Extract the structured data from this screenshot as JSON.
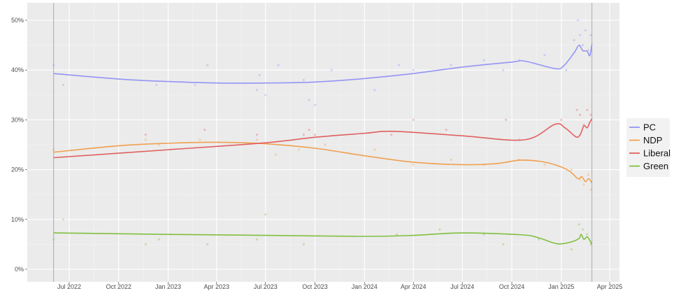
{
  "chart_data": {
    "type": "line",
    "title": "",
    "xlabel": "",
    "ylabel": "",
    "xlim": [
      "2022-05-01",
      "2025-04-20"
    ],
    "ylim": [
      -2,
      53
    ],
    "grid": true,
    "legend_position": "right",
    "x_ticks": [
      {
        "date": "2022-07-01",
        "label": "Jul 2022"
      },
      {
        "date": "2022-10-01",
        "label": "Oct 2022"
      },
      {
        "date": "2023-01-01",
        "label": "Jan 2023"
      },
      {
        "date": "2023-04-01",
        "label": "Apr 2023"
      },
      {
        "date": "2023-07-01",
        "label": "Jul 2023"
      },
      {
        "date": "2023-10-01",
        "label": "Oct 2023"
      },
      {
        "date": "2024-01-01",
        "label": "Jan 2024"
      },
      {
        "date": "2024-04-01",
        "label": "Apr 2024"
      },
      {
        "date": "2024-07-01",
        "label": "Jul 2024"
      },
      {
        "date": "2024-10-01",
        "label": "Oct 2024"
      },
      {
        "date": "2025-01-01",
        "label": "Jan 2025"
      },
      {
        "date": "2025-04-01",
        "label": "Apr 2025"
      }
    ],
    "y_ticks": [
      {
        "value": 0,
        "label": "0%"
      },
      {
        "value": 10,
        "label": "10%"
      },
      {
        "value": 20,
        "label": "20%"
      },
      {
        "value": 30,
        "label": "30%"
      },
      {
        "value": 40,
        "label": "40%"
      },
      {
        "value": 50,
        "label": "50%"
      }
    ],
    "vlines": [
      "2022-06-02",
      "2025-02-27"
    ],
    "series": [
      {
        "name": "PC",
        "color": "#9494f5",
        "trend": [
          [
            "2022-06-02",
            39.3
          ],
          [
            "2022-10-01",
            38.2
          ],
          [
            "2023-01-01",
            37.7
          ],
          [
            "2023-04-01",
            37.4
          ],
          [
            "2023-07-01",
            37.4
          ],
          [
            "2023-10-01",
            37.6
          ],
          [
            "2024-01-01",
            38.3
          ],
          [
            "2024-04-01",
            39.3
          ],
          [
            "2024-07-01",
            40.6
          ],
          [
            "2024-10-01",
            41.6
          ],
          [
            "2024-10-25",
            41.8
          ],
          [
            "2024-12-20",
            40.3
          ],
          [
            "2025-01-05",
            40.8
          ],
          [
            "2025-01-25",
            43.5
          ],
          [
            "2025-02-03",
            45.0
          ],
          [
            "2025-02-10",
            43.9
          ],
          [
            "2025-02-18",
            43.8
          ],
          [
            "2025-02-23",
            42.9
          ],
          [
            "2025-02-27",
            45.2
          ]
        ],
        "polls": [
          [
            "2022-06-02",
            41
          ],
          [
            "2022-06-20",
            37
          ],
          [
            "2022-12-10",
            37
          ],
          [
            "2023-02-20",
            37
          ],
          [
            "2023-03-15",
            41
          ],
          [
            "2023-06-15",
            36
          ],
          [
            "2023-06-20",
            39
          ],
          [
            "2023-07-01",
            35
          ],
          [
            "2023-07-25",
            41
          ],
          [
            "2023-09-10",
            38
          ],
          [
            "2023-09-20",
            34
          ],
          [
            "2023-10-01",
            33
          ],
          [
            "2023-11-01",
            40
          ],
          [
            "2024-01-20",
            36
          ],
          [
            "2024-03-05",
            41
          ],
          [
            "2024-04-01",
            40
          ],
          [
            "2024-06-10",
            41
          ],
          [
            "2024-08-10",
            42
          ],
          [
            "2024-09-15",
            40
          ],
          [
            "2024-10-15",
            42
          ],
          [
            "2024-12-01",
            43
          ],
          [
            "2025-01-10",
            40
          ],
          [
            "2025-01-25",
            46
          ],
          [
            "2025-02-01",
            50
          ],
          [
            "2025-02-05",
            47
          ],
          [
            "2025-02-10",
            45
          ],
          [
            "2025-02-15",
            48
          ],
          [
            "2025-02-20",
            44
          ],
          [
            "2025-02-25",
            47
          ]
        ]
      },
      {
        "name": "NDP",
        "color": "#f0a050",
        "trend": [
          [
            "2022-06-02",
            23.5
          ],
          [
            "2022-10-01",
            24.8
          ],
          [
            "2023-01-01",
            25.3
          ],
          [
            "2023-04-01",
            25.5
          ],
          [
            "2023-07-01",
            25.2
          ],
          [
            "2023-10-01",
            24.3
          ],
          [
            "2024-01-01",
            22.8
          ],
          [
            "2024-04-01",
            21.5
          ],
          [
            "2024-07-01",
            21.0
          ],
          [
            "2024-09-01",
            21.2
          ],
          [
            "2024-10-15",
            21.9
          ],
          [
            "2024-11-20",
            21.7
          ],
          [
            "2024-12-20",
            21.0
          ],
          [
            "2025-01-15",
            19.8
          ],
          [
            "2025-02-01",
            18.2
          ],
          [
            "2025-02-08",
            18.6
          ],
          [
            "2025-02-15",
            17.6
          ],
          [
            "2025-02-21",
            18.2
          ],
          [
            "2025-02-27",
            17.3
          ]
        ],
        "polls": [
          [
            "2022-06-02",
            24
          ],
          [
            "2022-11-20",
            26
          ],
          [
            "2022-12-15",
            25
          ],
          [
            "2023-03-01",
            26
          ],
          [
            "2023-06-15",
            26
          ],
          [
            "2023-07-20",
            23
          ],
          [
            "2023-09-01",
            24
          ],
          [
            "2023-10-20",
            25
          ],
          [
            "2024-01-20",
            24
          ],
          [
            "2024-04-01",
            21
          ],
          [
            "2024-06-10",
            22
          ],
          [
            "2024-08-10",
            21
          ],
          [
            "2024-10-15",
            22
          ],
          [
            "2024-12-01",
            21
          ],
          [
            "2025-01-20",
            20
          ],
          [
            "2025-02-05",
            18
          ],
          [
            "2025-02-12",
            17
          ],
          [
            "2025-02-20",
            19
          ],
          [
            "2025-02-25",
            16
          ]
        ]
      },
      {
        "name": "Liberal",
        "color": "#e06060",
        "trend": [
          [
            "2022-06-02",
            22.4
          ],
          [
            "2023-01-01",
            24.0
          ],
          [
            "2023-07-01",
            25.4
          ],
          [
            "2023-10-01",
            26.5
          ],
          [
            "2024-01-01",
            27.3
          ],
          [
            "2024-02-25",
            27.7
          ],
          [
            "2024-07-01",
            26.8
          ],
          [
            "2024-10-25",
            26.0
          ],
          [
            "2024-12-20",
            29.1
          ],
          [
            "2025-01-08",
            28.4
          ],
          [
            "2025-01-28",
            26.6
          ],
          [
            "2025-02-05",
            27.0
          ],
          [
            "2025-02-12",
            28.8
          ],
          [
            "2025-02-18",
            28.4
          ],
          [
            "2025-02-23",
            29.5
          ],
          [
            "2025-02-27",
            30.2
          ]
        ],
        "polls": [
          [
            "2022-11-20",
            27
          ],
          [
            "2023-03-10",
            28
          ],
          [
            "2023-06-15",
            27
          ],
          [
            "2023-09-10",
            27
          ],
          [
            "2023-09-20",
            28
          ],
          [
            "2023-10-01",
            27
          ],
          [
            "2024-02-20",
            27
          ],
          [
            "2024-04-01",
            30
          ],
          [
            "2024-06-01",
            28
          ],
          [
            "2024-09-20",
            30
          ],
          [
            "2024-10-15",
            26
          ],
          [
            "2025-01-01",
            30
          ],
          [
            "2025-01-30",
            32
          ],
          [
            "2025-02-05",
            31
          ],
          [
            "2025-02-12",
            29
          ],
          [
            "2025-02-18",
            32
          ],
          [
            "2025-02-25",
            31
          ]
        ]
      },
      {
        "name": "Green",
        "color": "#80bf40",
        "trend": [
          [
            "2022-06-02",
            7.3
          ],
          [
            "2023-01-01",
            7.0
          ],
          [
            "2023-07-01",
            6.8
          ],
          [
            "2024-01-01",
            6.6
          ],
          [
            "2024-04-01",
            6.8
          ],
          [
            "2024-07-01",
            7.3
          ],
          [
            "2024-10-20",
            6.9
          ],
          [
            "2024-11-20",
            6.3
          ],
          [
            "2024-12-25",
            5.1
          ],
          [
            "2025-01-20",
            5.5
          ],
          [
            "2025-02-03",
            6.2
          ],
          [
            "2025-02-07",
            7.0
          ],
          [
            "2025-02-12",
            6.0
          ],
          [
            "2025-02-18",
            6.5
          ],
          [
            "2025-02-23",
            5.8
          ],
          [
            "2025-02-27",
            5.0
          ]
        ],
        "polls": [
          [
            "2022-06-02",
            6
          ],
          [
            "2022-06-20",
            10
          ],
          [
            "2022-11-20",
            5
          ],
          [
            "2022-12-15",
            6
          ],
          [
            "2023-03-15",
            5
          ],
          [
            "2023-06-15",
            6
          ],
          [
            "2023-07-01",
            11
          ],
          [
            "2023-09-10",
            5
          ],
          [
            "2024-03-01",
            7
          ],
          [
            "2024-05-20",
            8
          ],
          [
            "2024-08-10",
            7
          ],
          [
            "2024-09-15",
            5
          ],
          [
            "2024-11-20",
            6
          ],
          [
            "2025-01-20",
            4
          ],
          [
            "2025-02-03",
            9
          ],
          [
            "2025-02-10",
            8
          ],
          [
            "2025-02-18",
            7
          ],
          [
            "2025-02-25",
            5
          ]
        ]
      }
    ]
  }
}
